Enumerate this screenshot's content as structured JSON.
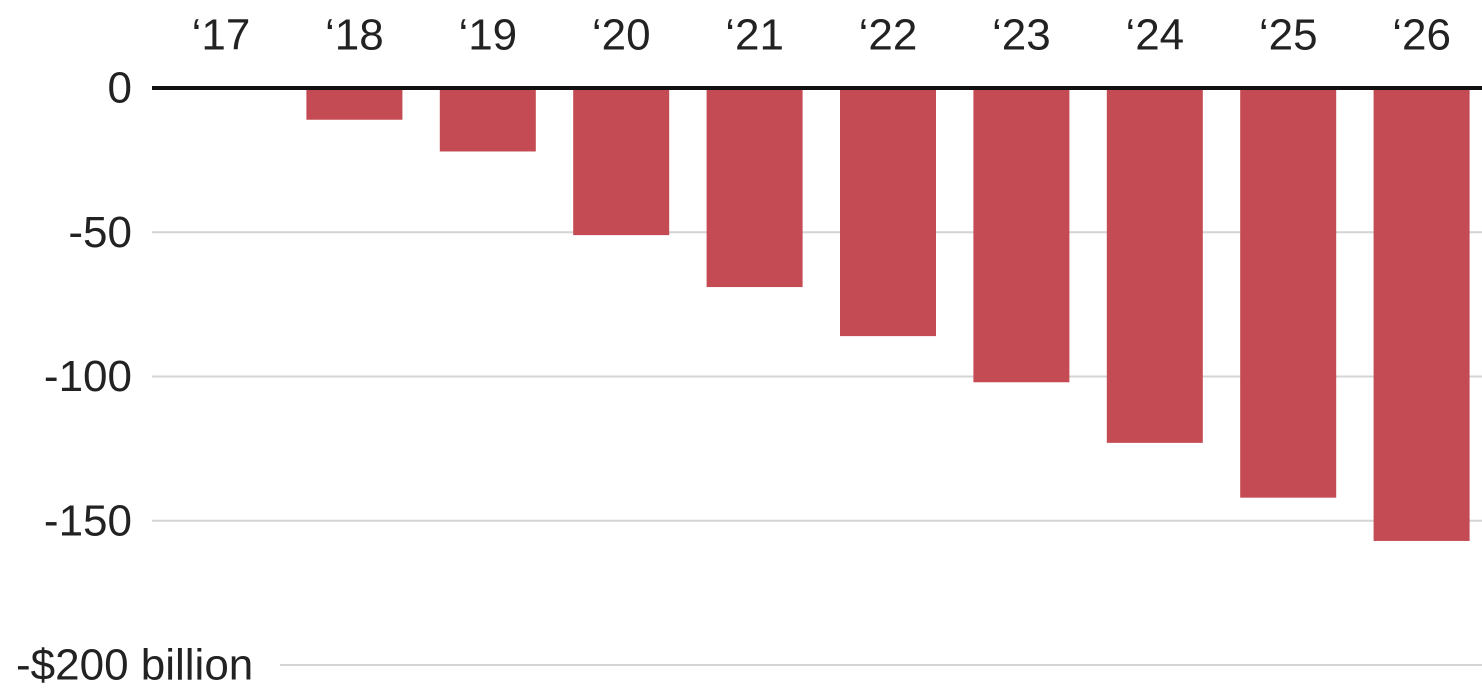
{
  "chart_data": {
    "type": "bar",
    "categories": [
      "‘17",
      "‘18",
      "‘19",
      "‘20",
      "‘21",
      "‘22",
      "‘23",
      "‘24",
      "‘25",
      "‘26"
    ],
    "values": [
      0,
      -11,
      -22,
      -51,
      -69,
      -86,
      -102,
      -123,
      -142,
      -157
    ],
    "ylim": [
      -200,
      0
    ],
    "yticks": [
      0,
      -50,
      -100,
      -150,
      -200
    ],
    "ytick_labels": [
      "0",
      "-50",
      "-100",
      "-150",
      "-$200 billion"
    ],
    "x_axis_position": "top",
    "grid": true,
    "colors": {
      "bar": "#c44b53",
      "zero_line": "#111111",
      "grid": "#d4d4d4",
      "text": "#222222"
    }
  }
}
